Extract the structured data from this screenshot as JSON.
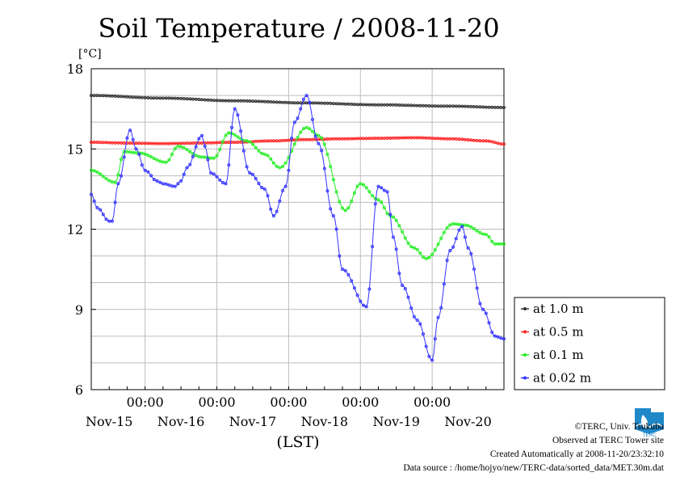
{
  "chart_data": {
    "type": "line",
    "title": "Soil Temperature / 2008-11-20",
    "ylabel": "[°C]",
    "xlabel": "(LST)",
    "ylim": [
      6,
      18
    ],
    "yticks": [
      6,
      9,
      12,
      15,
      18
    ],
    "x_tick_label": "00:00",
    "x_days": [
      "Nov-15",
      "Nov-16",
      "Nov-17",
      "Nov-18",
      "Nov-19",
      "Nov-20"
    ],
    "x_units": "hours since Nov-14 00:00",
    "xlim": [
      6,
      144
    ],
    "legend_position": "right",
    "series": [
      {
        "name": "at 1.0 m",
        "color": "#333333",
        "x": [
          6,
          30,
          54,
          78,
          102,
          126,
          144
        ],
        "y": [
          17.0,
          16.9,
          16.8,
          16.72,
          16.65,
          16.6,
          16.55
        ]
      },
      {
        "name": "at 0.5 m",
        "color": "#ff2222",
        "x": [
          6,
          18,
          30,
          42,
          54,
          66,
          78,
          90,
          102,
          114,
          126,
          138,
          144
        ],
        "y": [
          15.25,
          15.22,
          15.2,
          15.22,
          15.25,
          15.3,
          15.35,
          15.38,
          15.4,
          15.42,
          15.38,
          15.3,
          15.18
        ]
      },
      {
        "name": "at 0.1 m",
        "color": "#22ee22",
        "x": [
          6,
          14,
          17,
          22,
          31,
          35,
          43,
          47,
          52,
          58,
          64,
          69,
          78,
          82,
          91,
          96,
          102,
          106,
          114,
          118,
          127,
          131,
          138,
          141,
          144
        ],
        "y": [
          14.2,
          13.75,
          14.9,
          14.85,
          14.5,
          15.1,
          14.7,
          14.65,
          15.6,
          15.3,
          14.8,
          14.3,
          15.8,
          15.5,
          12.7,
          13.7,
          13.1,
          12.5,
          11.3,
          10.9,
          12.2,
          12.15,
          11.8,
          11.45,
          11.45
        ]
      },
      {
        "name": "at 0.02 m",
        "color": "#3333ff",
        "x": [
          6,
          8,
          12,
          13,
          15,
          19,
          21,
          24,
          28,
          30,
          34,
          36,
          38,
          43,
          44,
          46,
          51,
          54,
          59,
          64,
          67,
          71,
          74,
          78,
          82,
          87,
          90,
          98,
          102,
          105,
          107,
          110,
          115,
          120,
          122,
          126,
          130,
          132,
          137,
          141,
          144
        ],
        "y": [
          13.3,
          12.8,
          12.3,
          12.3,
          13.7,
          15.7,
          15.0,
          14.2,
          13.8,
          13.7,
          13.6,
          13.8,
          14.3,
          15.5,
          15.1,
          14.1,
          13.7,
          16.5,
          14.1,
          13.5,
          12.5,
          13.6,
          16.0,
          17.0,
          15.2,
          12.5,
          10.5,
          9.1,
          13.6,
          13.4,
          11.7,
          9.9,
          8.6,
          7.1,
          8.7,
          11.2,
          12.1,
          11.3,
          9.0,
          8.0,
          7.9
        ]
      }
    ]
  },
  "footer": {
    "copyright": "©TERC, Univ. Tsukuba",
    "observed": "Observed at TERC Tower site",
    "created": "Created Automatically at 2008-11-20/23:32:10",
    "source": "Data source : /home/hojyo/new/TERC-data/sorted_data/MET.30m.dat",
    "logo_text": "TERC"
  }
}
